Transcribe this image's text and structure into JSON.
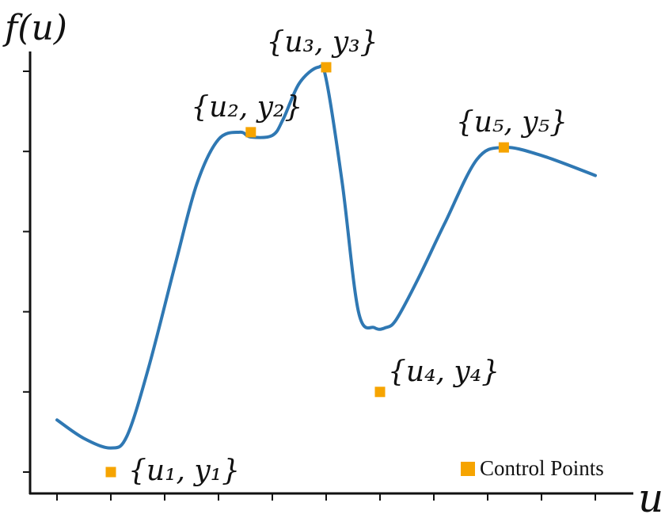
{
  "chart_data": {
    "type": "line",
    "ylabel": "f(u)",
    "xlabel": "u",
    "xlim": [
      0,
      10
    ],
    "ylim": [
      0,
      5.2
    ],
    "xticks": [
      0,
      1,
      2,
      3,
      4,
      5,
      6,
      7,
      8,
      9,
      10
    ],
    "yticks": [
      0,
      1,
      2,
      3,
      4,
      5
    ],
    "grid": false,
    "curve": {
      "x": [
        0.0,
        0.5,
        1.0,
        1.3,
        1.7,
        2.2,
        2.6,
        3.0,
        3.4,
        3.6,
        4.0,
        4.2,
        4.5,
        4.85,
        5.0,
        5.3,
        5.6,
        5.9,
        6.1,
        6.3,
        6.7,
        7.2,
        7.8,
        8.3,
        9.0,
        10.0
      ],
      "y": [
        0.65,
        0.42,
        0.3,
        0.45,
        1.3,
        2.6,
        3.6,
        4.15,
        4.24,
        4.18,
        4.2,
        4.4,
        4.85,
        5.05,
        4.9,
        3.6,
        2.0,
        1.8,
        1.8,
        1.9,
        2.4,
        3.1,
        3.9,
        4.05,
        3.95,
        3.7
      ]
    },
    "control_points": [
      {
        "label": "{u₁, y₁}",
        "x": 1.0,
        "y": 0.0,
        "label_pos": "right"
      },
      {
        "label": "{u₂, y₂}",
        "x": 3.6,
        "y": 4.24,
        "label_pos": "above-left"
      },
      {
        "label": "{u₃, y₃}",
        "x": 5.0,
        "y": 5.05,
        "label_pos": "above-left"
      },
      {
        "label": "{u₄, y₄}",
        "x": 6.0,
        "y": 1.0,
        "label_pos": "above-right"
      },
      {
        "label": "{u₅, y₅}",
        "x": 8.3,
        "y": 4.05,
        "label_pos": "above"
      }
    ],
    "legend": {
      "label": "Control Points",
      "position": "bottom-right"
    },
    "colors": {
      "curve": "#2f78b3",
      "points": "#f6a400",
      "axis": "#111111"
    }
  }
}
